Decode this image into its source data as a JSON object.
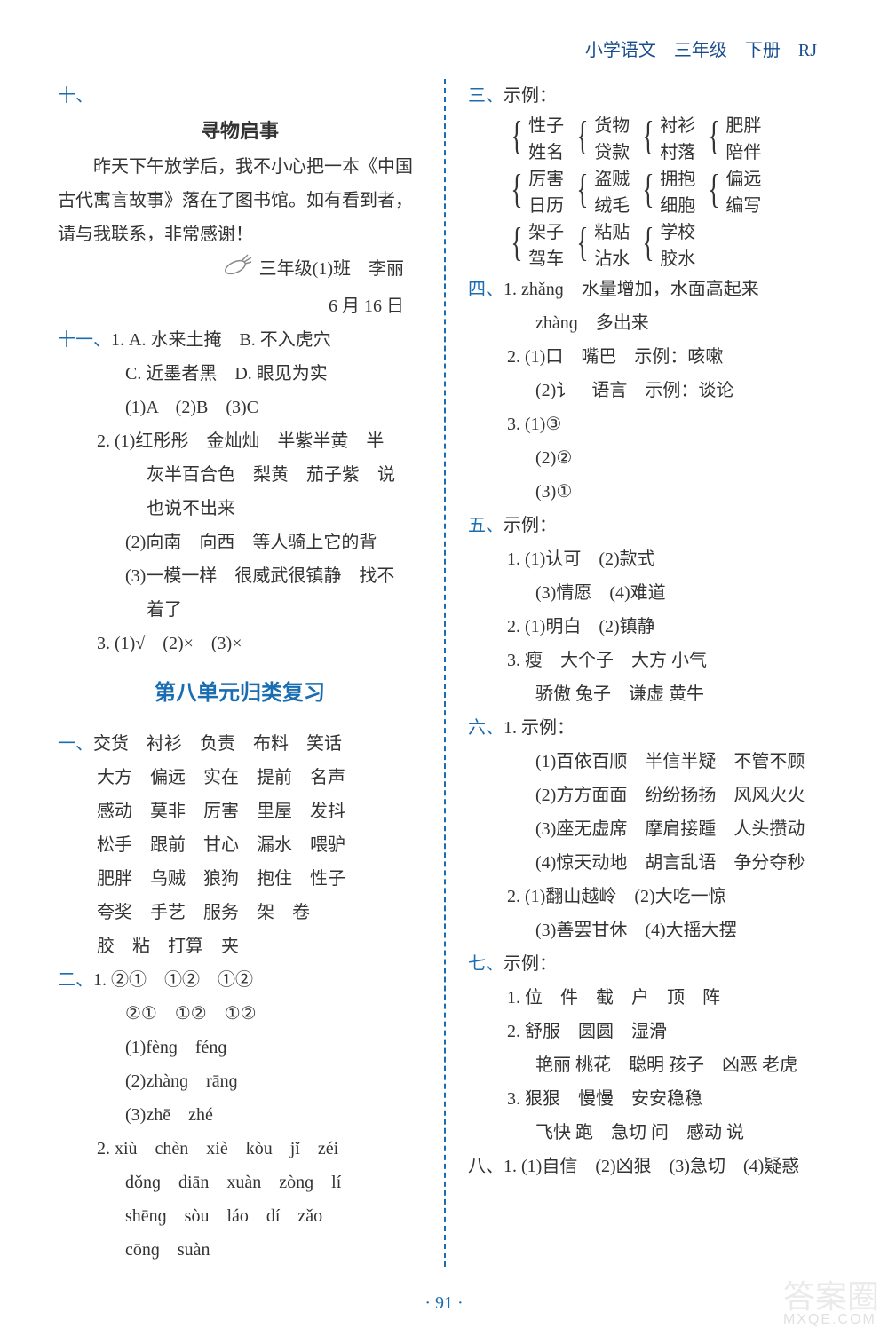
{
  "header": "小学语文　三年级　下册　RJ",
  "page_number": "· 91 ·",
  "watermark": {
    "big": "答案圈",
    "small": "MXQE.COM"
  },
  "left": {
    "sec10_label": "十、",
    "notice": {
      "title": "寻物启事",
      "body": "昨天下午放学后，我不小心把一本《中国古代寓言故事》落在了图书馆。如有看到者，请与我联系，非常感谢！",
      "sig1": "三年级(1)班　李丽",
      "sig2": "6 月 16 日"
    },
    "sec11_label": "十一、",
    "q1": {
      "a": "1. A. 水来土掩　B. 不入虎穴",
      "b": "C. 近墨者黑　D. 眼见为实",
      "c": "(1)A　(2)B　(3)C"
    },
    "q2": {
      "a": "2. (1)红彤彤　金灿灿　半紫半黄　半",
      "b": "灰半百合色　梨黄　茄子紫　说",
      "c": "也说不出来",
      "d": "(2)向南　向西　等人骑上它的背",
      "e": "(3)一模一样　很威武很镇静　找不",
      "f": "着了"
    },
    "q3": "3. (1)√　(2)×　(3)×",
    "unit8_title": "第八单元归类复习",
    "u1_label": "一、",
    "u1_lines": [
      "交货　衬衫　负责　布料　笑话",
      "大方　偏远　实在　提前　名声",
      "感动　莫非　厉害　里屋　发抖",
      "松手　跟前　甘心　漏水　喂驴",
      "肥胖　乌贼　狼狗　抱住　性子",
      "夸奖　手艺　服务　架　卷",
      "胶　粘　打算　夹"
    ],
    "u2_label": "二、",
    "u2_1a": "1. ②①　①②　①②",
    "u2_1b": "②①　①②　①②",
    "u2_1c": "(1)fènɡ　fénɡ",
    "u2_1d": "(2)zhànɡ　rānɡ",
    "u2_1e": "(3)zhē　zhé",
    "u2_2a": "2. xiù　chèn　xiè　kòu　jǐ　zéi",
    "u2_2b": "dǒnɡ　diān　xuàn　zònɡ　lí",
    "u2_2c": "shēnɡ　sòu　láo　dí　zǎo",
    "u2_2d": "cōnɡ　suàn"
  },
  "right": {
    "sec3_label": "三、",
    "sec3_intro": "示例：",
    "braces": [
      [
        [
          "性子",
          "姓名"
        ],
        [
          "货物",
          "贷款"
        ],
        [
          "衬衫",
          "村落"
        ],
        [
          "肥胖",
          "陪伴"
        ]
      ],
      [
        [
          "厉害",
          "日历"
        ],
        [
          "盗贼",
          "绒毛"
        ],
        [
          "拥抱",
          "细胞"
        ],
        [
          "偏远",
          "编写"
        ]
      ],
      [
        [
          "架子",
          "驾车"
        ],
        [
          "粘贴",
          "沾水"
        ],
        [
          "学校",
          "胶水"
        ]
      ]
    ],
    "sec4_label": "四、",
    "sec4_1a": "1. zhǎnɡ　水量增加，水面高起来",
    "sec4_1b": "zhànɡ　多出来",
    "sec4_2a": "2. (1)口　嘴巴　示例：咳嗽",
    "sec4_2b": "(2)讠　语言　示例：谈论",
    "sec4_3a": "3. (1)③",
    "sec4_3b": "(2)②",
    "sec4_3c": "(3)①",
    "sec5_label": "五、",
    "sec5_intro": "示例：",
    "sec5_1a": "1. (1)认可　(2)款式",
    "sec5_1b": "(3)情愿　(4)难道",
    "sec5_2": "2. (1)明白　(2)镇静",
    "sec5_3a": "3. 瘦　大个子　大方 小气",
    "sec5_3b": "骄傲 兔子　谦虚 黄牛",
    "sec6_label": "六、",
    "sec6_1intro": "1. 示例：",
    "sec6_1_lines": [
      "(1)百依百顺　半信半疑　不管不顾",
      "(2)方方面面　纷纷扬扬　风风火火",
      "(3)座无虚席　摩肩接踵　人头攒动",
      "(4)惊天动地　胡言乱语　争分夺秒"
    ],
    "sec6_2a": "2. (1)翻山越岭　(2)大吃一惊",
    "sec6_2b": "(3)善罢甘休　(4)大摇大摆",
    "sec7_label": "七、",
    "sec7_intro": "示例：",
    "sec7_1": "1. 位　件　截　户　顶　阵",
    "sec7_2a": "2. 舒服　圆圆　湿滑",
    "sec7_2b": "艳丽 桃花　聪明 孩子　凶恶 老虎",
    "sec7_3a": "3. 狠狠　慢慢　安安稳稳",
    "sec7_3b": "飞快 跑　急切 问　感动 说",
    "sec8": "八、1. (1)自信　(2)凶狠　(3)急切　(4)疑惑"
  }
}
